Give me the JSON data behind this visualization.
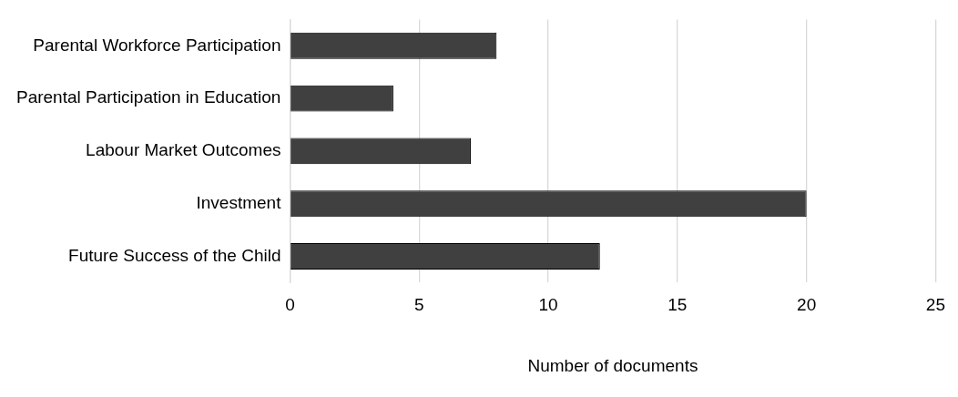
{
  "chart_data": {
    "type": "bar",
    "orientation": "horizontal",
    "xlabel": "Number of documents",
    "categories": [
      "Parental Workforce Participation",
      "Parental Participation in Education",
      "Labour Market Outcomes",
      "Investment",
      "Future Success of the Child"
    ],
    "values": [
      8,
      4,
      7,
      20,
      12
    ],
    "color": "#404040",
    "xlim": [
      0,
      25
    ],
    "xticks": [
      0,
      5,
      10,
      15,
      20,
      25
    ],
    "grid": "x",
    "legend": false
  }
}
